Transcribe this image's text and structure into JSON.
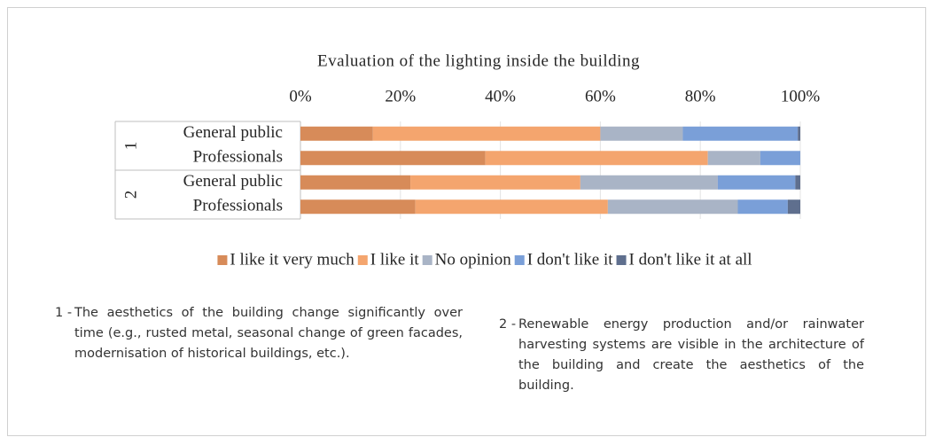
{
  "chart_data": {
    "type": "stacked-bar-horizontal",
    "title": "Evaluation of the lighting inside the building",
    "groups": [
      {
        "label": "1",
        "categories": [
          "General public",
          "Professionals"
        ]
      },
      {
        "label": "2",
        "categories": [
          "General public",
          "Professionals"
        ]
      }
    ],
    "series": [
      {
        "name": "I like it very much",
        "color": "#d78b59",
        "values": [
          14.5,
          37,
          22,
          23
        ]
      },
      {
        "name": "I like it",
        "color": "#f4a56e",
        "values": [
          45.5,
          44.5,
          34,
          38.5
        ]
      },
      {
        "name": "No opinion",
        "color": "#a9b4c6",
        "values": [
          16.5,
          10.5,
          27.5,
          26
        ]
      },
      {
        "name": "I don't like it",
        "color": "#7a9fd8",
        "values": [
          23,
          8,
          15.5,
          10
        ]
      },
      {
        "name": "I don't like it at all",
        "color": "#5f6f8e",
        "values": [
          0.5,
          0,
          1,
          2.5
        ]
      }
    ],
    "xlim": [
      0,
      100
    ],
    "xticks": [
      {
        "value": 0,
        "label": "0%"
      },
      {
        "value": 20,
        "label": "20%"
      },
      {
        "value": 40,
        "label": "40%"
      },
      {
        "value": 60,
        "label": "60%"
      },
      {
        "value": 80,
        "label": "80%"
      },
      {
        "value": 100,
        "label": "100%"
      }
    ],
    "grid": true,
    "legend": "bottom"
  },
  "notes": [
    {
      "marker": "1 -",
      "text": "The aesthetics of the building change significantly over time (e.g., rusted metal, seasonal change of green facades, modernisation of historical buildings, etc.)."
    },
    {
      "marker": "2 -",
      "text": "Renewable energy production and/or rainwater harvesting systems are visible in the architecture of the building and create the aesthetics of the building."
    }
  ]
}
